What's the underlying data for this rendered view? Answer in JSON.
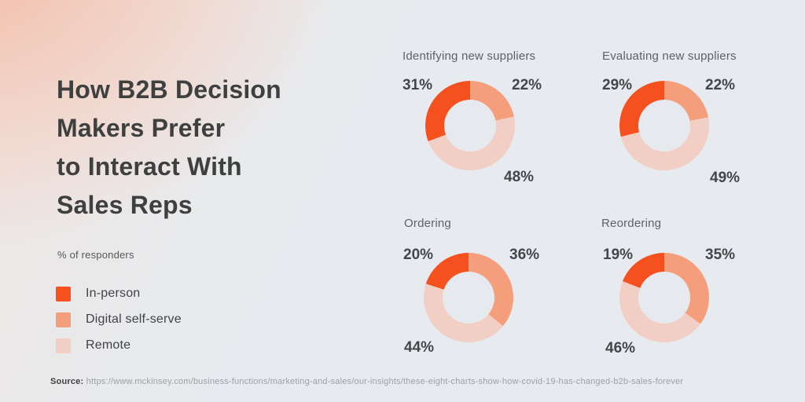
{
  "page": {
    "title": "How B2B Decision\nMakers Prefer\nto Interact With\nSales Reps",
    "subtitle": "% of responders",
    "source_label": "Source:",
    "source_url": "https://www.mckinsey.com/business-functions/marketing-and-sales/our-insights/these-eight-charts-show-how-covid-19-has-changed-b2b-sales-forever"
  },
  "legend": {
    "position": "left",
    "items": [
      {
        "key": "in_person",
        "label": "In-person",
        "color": "#F4511E"
      },
      {
        "key": "digital_self_serve",
        "label": "Digital self-serve",
        "color": "#F59E7C"
      },
      {
        "key": "remote",
        "label": "Remote",
        "color": "#F1CFC4"
      }
    ]
  },
  "chart_data": {
    "type": "pie",
    "variant": "donut",
    "unit": "% of responders",
    "segment_order_clockwise_from_top": [
      "digital_self_serve",
      "remote",
      "in_person"
    ],
    "series_labels": [
      "In-person",
      "Digital self-serve",
      "Remote"
    ],
    "charts": [
      {
        "title": "Identifying new suppliers",
        "values": {
          "in_person": 31,
          "digital_self_serve": 22,
          "remote": 48
        },
        "labels": {
          "in_person": "31%",
          "digital_self_serve": "22%",
          "remote": "48%"
        }
      },
      {
        "title": "Evaluating new suppliers",
        "values": {
          "in_person": 29,
          "digital_self_serve": 22,
          "remote": 49
        },
        "labels": {
          "in_person": "29%",
          "digital_self_serve": "22%",
          "remote": "49%"
        }
      },
      {
        "title": "Ordering",
        "values": {
          "in_person": 20,
          "digital_self_serve": 36,
          "remote": 44
        },
        "labels": {
          "in_person": "20%",
          "digital_self_serve": "36%",
          "remote": "44%"
        }
      },
      {
        "title": "Reordering",
        "values": {
          "in_person": 19,
          "digital_self_serve": 35,
          "remote": 46
        },
        "labels": {
          "in_person": "19%",
          "digital_self_serve": "35%",
          "remote": "46%"
        }
      }
    ]
  },
  "colors": {
    "background_base": "#E7EBEF",
    "background_tint_top_left": "#F5D5C9",
    "title_text": "#3E3F3F",
    "chart_title_text": "#5D6265",
    "value_text": "#42474A",
    "source_url_text": "#9BA1A7",
    "donut_hole": "#E6EAEE"
  }
}
